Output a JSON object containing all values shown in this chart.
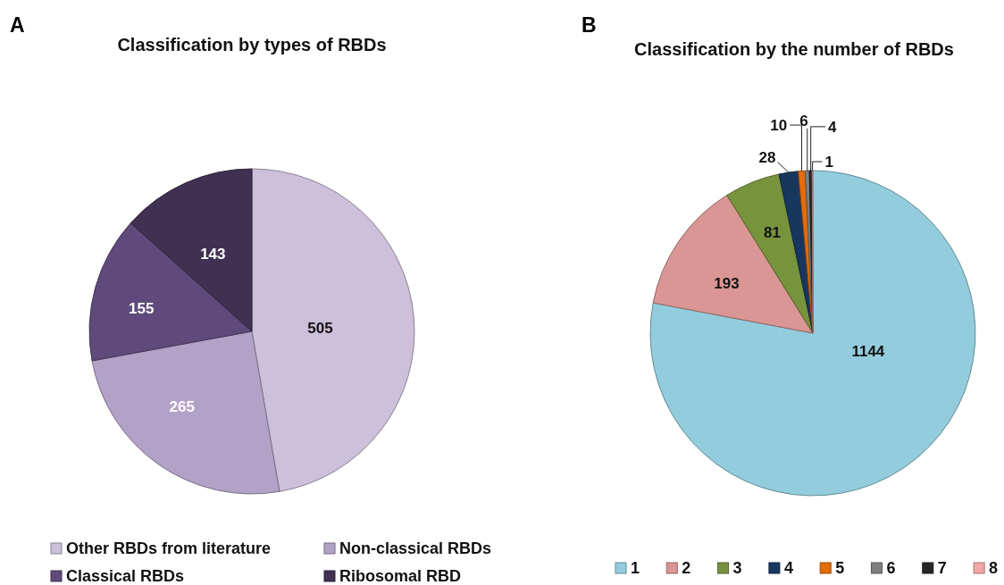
{
  "chart_data": [
    {
      "type": "pie",
      "title": "Classification by types of RBDs",
      "annotations": [
        "A"
      ],
      "categories": [
        "Other RBDs from literature",
        "Non-classical RBDs",
        "Classical RBDs",
        "Ribosomal RBD"
      ],
      "values": [
        505,
        265,
        155,
        143
      ],
      "colors": [
        "#ccc0da",
        "#b3a2c7",
        "#604a7b",
        "#403152"
      ],
      "data_labels": true,
      "legend": "bottom"
    },
    {
      "type": "pie",
      "title": "Classification by the number of RBDs",
      "annotations": [
        "B"
      ],
      "categories": [
        "1",
        "2",
        "3",
        "4",
        "5",
        "6",
        "7",
        "8"
      ],
      "values": [
        1144,
        193,
        81,
        28,
        10,
        6,
        4,
        1
      ],
      "colors": [
        "#93cddd",
        "#d99694",
        "#77933c",
        "#17375e",
        "#e46c0a",
        "#7f7f7f",
        "#262626",
        "#f4a6a6"
      ],
      "data_labels": true,
      "legend": "bottom"
    }
  ]
}
